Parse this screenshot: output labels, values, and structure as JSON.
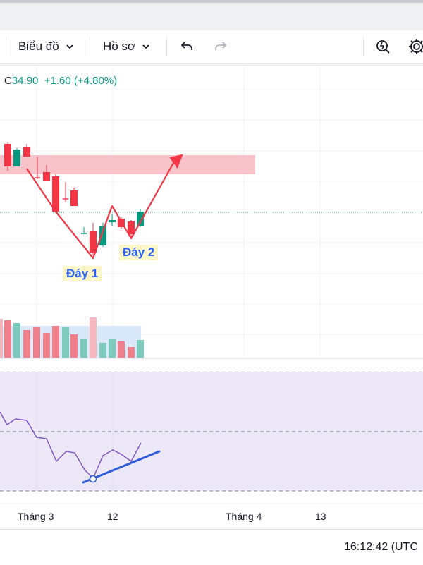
{
  "toolbar": {
    "chart_menu_label": "Biểu đồ",
    "profile_menu_label": "Hồ sơ"
  },
  "legend": {
    "close_prefix": "C",
    "close_value": "34.90",
    "change": "+1.60",
    "change_pct": "(+4.80%)"
  },
  "annotations": {
    "bottom1": "Đáy 1",
    "bottom2": "Đáy 2"
  },
  "time_axis": {
    "labels": [
      "Tháng 3",
      "12",
      "Tháng 4",
      "13"
    ]
  },
  "status": {
    "time": "16:12:42 (UTC"
  },
  "colors": {
    "up": "#089981",
    "down": "#f23645",
    "resistance_zone": "#f7b9c0",
    "pattern_line": "#f23645",
    "rsi_line": "#7e57c2",
    "rsi_trend": "#2f5bd9",
    "rsi_band": "#ece8f8",
    "annotation_bg": "#fdf6c8",
    "annotation_text": "#2962ff"
  }
}
